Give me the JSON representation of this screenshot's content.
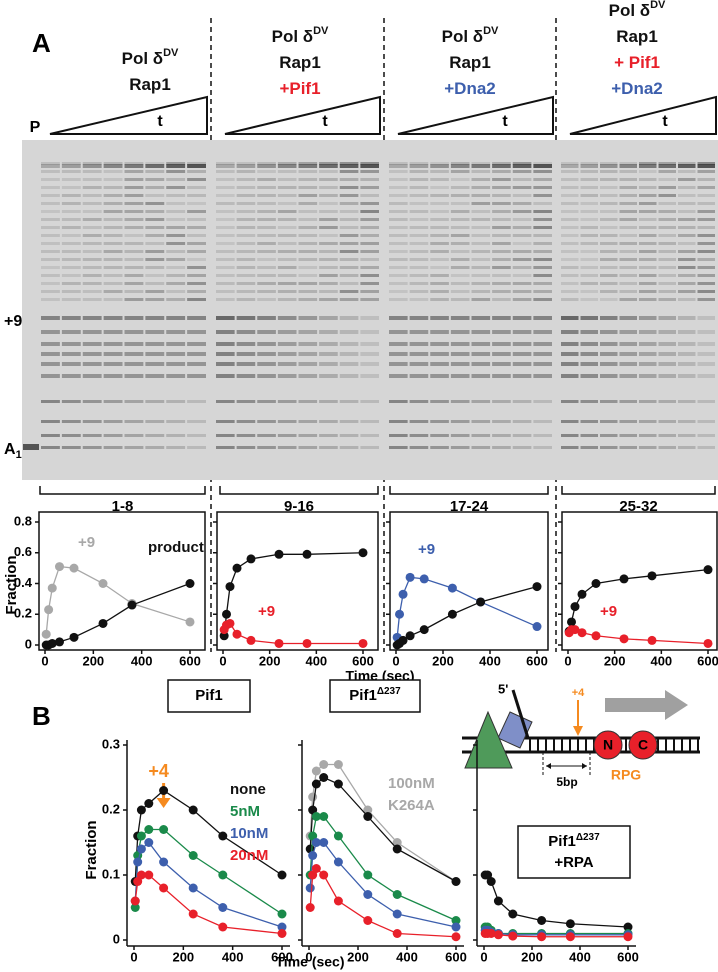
{
  "panel_labels": {
    "a": "A",
    "b": "B"
  },
  "gel": {
    "headers": [
      {
        "lines": [
          {
            "text": "Pol δ",
            "sup": "DV"
          },
          {
            "text": "Rap1"
          }
        ]
      },
      {
        "lines": [
          {
            "text": "Pol δ",
            "sup": "DV"
          },
          {
            "text": "Rap1"
          },
          {
            "text": "+Pif1",
            "color": "#e8202a"
          }
        ]
      },
      {
        "lines": [
          {
            "text": "Pol δ",
            "sup": "DV"
          },
          {
            "text": "Rap1"
          },
          {
            "text": "+Dna2",
            "color": "#3d5fad"
          }
        ]
      },
      {
        "lines": [
          {
            "text": "Pol δ",
            "sup": "DV"
          },
          {
            "text": "Rap1"
          },
          {
            "text": "+ Pif1",
            "color": "#e8202a"
          },
          {
            "text": "+Dna2",
            "color": "#3d5fad"
          }
        ]
      }
    ],
    "primer_label": "P",
    "time_labels": [
      "t",
      "t",
      "t",
      "t"
    ],
    "plus9_label": "+9",
    "a1_label": "A",
    "a1_sub": "1",
    "lane_groups": [
      "1-8",
      "9-16",
      "17-24",
      "25-32"
    ]
  },
  "schematic": {
    "five_prime": "5'",
    "plus4": "+4",
    "gap": "5bp",
    "n": "N",
    "c": "C",
    "rpg": "RPG"
  },
  "chart_data": [
    {
      "type": "line",
      "frame": true,
      "ytick_labels": true,
      "ylabel": "Fraction",
      "xlabel": "Time (sec)",
      "x": [
        5,
        15,
        30,
        60,
        120,
        240,
        360,
        600
      ],
      "xlim": [
        0,
        600
      ],
      "xticks": [
        0,
        200,
        400,
        600
      ],
      "ylim": [
        0,
        0.8
      ],
      "yticks": [
        0,
        0.2,
        0.4,
        0.6,
        0.8
      ],
      "series": [
        {
          "name": "+9",
          "color": "#a8a8a8",
          "values": [
            0.07,
            0.23,
            0.37,
            0.51,
            0.5,
            0.4,
            0.27,
            0.15
          ]
        },
        {
          "name": "product",
          "color": "#111111",
          "values": [
            0,
            0,
            0.01,
            0.02,
            0.05,
            0.14,
            0.26,
            0.4
          ]
        }
      ]
    },
    {
      "type": "line",
      "frame": true,
      "ytick_labels": false,
      "x": [
        5,
        15,
        30,
        60,
        120,
        240,
        360,
        600
      ],
      "xlim": [
        0,
        600
      ],
      "xticks": [
        0,
        200,
        400,
        600
      ],
      "ylim": [
        0,
        0.8
      ],
      "yticks": [
        0,
        0.2,
        0.4,
        0.6,
        0.8
      ],
      "series": [
        {
          "color": "#111111",
          "values": [
            0.06,
            0.2,
            0.38,
            0.5,
            0.56,
            0.59,
            0.59,
            0.6
          ]
        },
        {
          "name": "+9",
          "color": "#e8202a",
          "values": [
            0.1,
            0.13,
            0.14,
            0.07,
            0.03,
            0.01,
            0.01,
            0.01
          ]
        }
      ]
    },
    {
      "type": "line",
      "frame": true,
      "ytick_labels": false,
      "x": [
        5,
        15,
        30,
        60,
        120,
        240,
        360,
        600
      ],
      "xlim": [
        0,
        600
      ],
      "xticks": [
        0,
        200,
        400,
        600
      ],
      "ylim": [
        0,
        0.8
      ],
      "yticks": [
        0,
        0.2,
        0.4,
        0.6,
        0.8
      ],
      "series": [
        {
          "name": "+9",
          "color": "#3d5fad",
          "values": [
            0.05,
            0.2,
            0.33,
            0.44,
            0.43,
            0.37,
            0.28,
            0.12
          ]
        },
        {
          "color": "#111111",
          "values": [
            0,
            0.01,
            0.03,
            0.06,
            0.1,
            0.2,
            0.28,
            0.38
          ]
        }
      ]
    },
    {
      "type": "line",
      "frame": true,
      "ytick_labels": false,
      "x": [
        5,
        15,
        30,
        60,
        120,
        240,
        360,
        600
      ],
      "xlim": [
        0,
        600
      ],
      "xticks": [
        0,
        200,
        400,
        600
      ],
      "ylim": [
        0,
        0.8
      ],
      "yticks": [
        0,
        0.2,
        0.4,
        0.6,
        0.8
      ],
      "series": [
        {
          "color": "#111111",
          "values": [
            0.09,
            0.15,
            0.25,
            0.33,
            0.4,
            0.43,
            0.45,
            0.49
          ]
        },
        {
          "name": "+9",
          "color": "#e8202a",
          "values": [
            0.08,
            0.1,
            0.1,
            0.08,
            0.06,
            0.04,
            0.03,
            0.01
          ]
        }
      ]
    },
    {
      "type": "line",
      "frame": false,
      "ytick_labels": true,
      "ylabel": "Fraction",
      "xlabel": "Time (sec)",
      "title": "Pif1",
      "annotations": [
        {
          "text": "+4",
          "color": "#f58a1f"
        }
      ],
      "x": [
        5,
        15,
        30,
        60,
        120,
        240,
        360,
        600
      ],
      "xlim": [
        0,
        600
      ],
      "xticks": [
        0,
        200,
        400,
        600
      ],
      "ylim": [
        0,
        0.3
      ],
      "yticks": [
        0,
        0.1,
        0.2,
        0.3
      ],
      "series": [
        {
          "name": "none",
          "color": "#111111",
          "values": [
            0.09,
            0.16,
            0.2,
            0.21,
            0.23,
            0.2,
            0.16,
            0.1
          ]
        },
        {
          "name": "5nM",
          "color": "#1a8a4a",
          "values": [
            0.05,
            0.13,
            0.16,
            0.17,
            0.17,
            0.13,
            0.1,
            0.04
          ]
        },
        {
          "name": "10nM",
          "color": "#3d5fad",
          "values": [
            0.06,
            0.12,
            0.14,
            0.15,
            0.12,
            0.08,
            0.05,
            0.02
          ]
        },
        {
          "name": "20nM",
          "color": "#e8202a",
          "values": [
            0.06,
            0.09,
            0.1,
            0.1,
            0.08,
            0.04,
            0.02,
            0.01
          ]
        }
      ]
    },
    {
      "type": "line",
      "frame": false,
      "ytick_labels": false,
      "title": "Pif1",
      "title_sup": "Δ237",
      "x": [
        5,
        15,
        30,
        60,
        120,
        240,
        360,
        600
      ],
      "xlim": [
        0,
        600
      ],
      "xticks": [
        0,
        200,
        400,
        600
      ],
      "ylim": [
        0,
        0.3
      ],
      "yticks": [
        0,
        0.1,
        0.2,
        0.3
      ],
      "series": [
        {
          "name": "100nM\nK264A",
          "color": "#a8a8a8",
          "values": [
            0.16,
            0.22,
            0.26,
            0.27,
            0.27,
            0.2,
            0.15,
            0.09
          ]
        },
        {
          "color": "#111111",
          "values": [
            0.14,
            0.2,
            0.24,
            0.25,
            0.24,
            0.19,
            0.14,
            0.09
          ]
        },
        {
          "color": "#1a8a4a",
          "values": [
            0.1,
            0.16,
            0.19,
            0.19,
            0.16,
            0.1,
            0.07,
            0.03
          ]
        },
        {
          "color": "#3d5fad",
          "values": [
            0.08,
            0.13,
            0.15,
            0.15,
            0.12,
            0.07,
            0.04,
            0.02
          ]
        },
        {
          "color": "#e8202a",
          "values": [
            0.05,
            0.1,
            0.11,
            0.1,
            0.06,
            0.03,
            0.01,
            0.005
          ]
        }
      ]
    },
    {
      "type": "line",
      "frame": false,
      "ytick_labels": false,
      "title": "Pif1",
      "title_sup": "Δ237",
      "title_line2": "+RPA",
      "x": [
        5,
        15,
        30,
        60,
        120,
        240,
        360,
        600
      ],
      "xlim": [
        0,
        600
      ],
      "xticks": [
        0,
        200,
        400,
        600
      ],
      "ylim": [
        0,
        0.3
      ],
      "yticks": [
        0,
        0.1,
        0.2,
        0.3
      ],
      "series": [
        {
          "color": "#111111",
          "values": [
            0.1,
            0.1,
            0.09,
            0.06,
            0.04,
            0.03,
            0.025,
            0.02
          ]
        },
        {
          "color": "#1a8a4a",
          "values": [
            0.02,
            0.02,
            0.015,
            0.01,
            0.01,
            0.01,
            0.01,
            0.01
          ]
        },
        {
          "color": "#3d5fad",
          "values": [
            0.015,
            0.015,
            0.012,
            0.01,
            0.008,
            0.008,
            0.008,
            0.008
          ]
        },
        {
          "color": "#e8202a",
          "values": [
            0.01,
            0.01,
            0.01,
            0.008,
            0.006,
            0.005,
            0.005,
            0.005
          ]
        }
      ]
    }
  ]
}
